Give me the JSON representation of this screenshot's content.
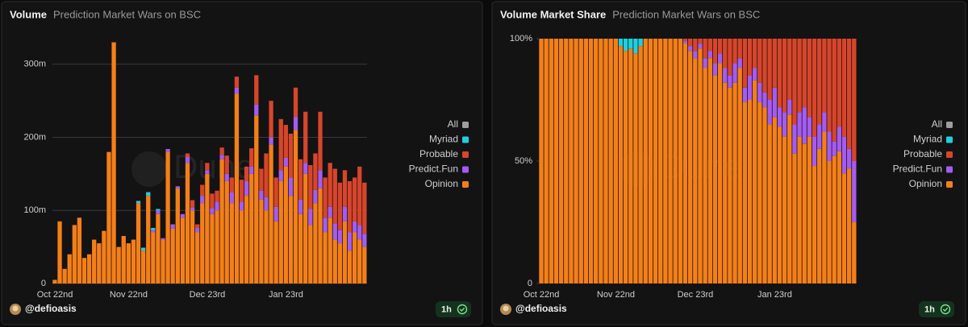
{
  "watermark": "Dune",
  "footer": {
    "author": "@defioasis",
    "badge": "1h"
  },
  "chart_data": [
    {
      "type": "stacked-bar",
      "title": "Volume",
      "subtitle": "Prediction Market Wars on BSC",
      "categories": [
        "Oct 22nd",
        null,
        null,
        null,
        null,
        null,
        null,
        null,
        null,
        null,
        null,
        null,
        null,
        null,
        null,
        "Nov 22nd",
        null,
        null,
        null,
        null,
        null,
        null,
        null,
        null,
        null,
        null,
        null,
        null,
        null,
        null,
        null,
        "Dec 23rd",
        null,
        null,
        null,
        null,
        null,
        null,
        null,
        null,
        null,
        null,
        null,
        null,
        null,
        null,
        null,
        "Jan 23rd",
        null,
        null,
        null,
        null,
        null,
        null,
        null,
        null,
        null,
        null,
        null,
        null,
        null,
        null,
        null,
        null
      ],
      "ylim": [
        0,
        335
      ],
      "yticks": [
        0,
        {
          "value": 100,
          "label": "100m"
        },
        {
          "value": 200,
          "label": "200m"
        },
        {
          "value": 300,
          "label": "300m"
        }
      ],
      "grid": true,
      "series": [
        {
          "name": "Opinion",
          "color": "#f57f17",
          "values": [
            5,
            85,
            20,
            40,
            80,
            90,
            35,
            40,
            60,
            55,
            72,
            180,
            330,
            50,
            65,
            55,
            60,
            110,
            45,
            120,
            70,
            95,
            60,
            180,
            75,
            130,
            90,
            165,
            100,
            70,
            110,
            150,
            95,
            100,
            170,
            140,
            110,
            260,
            100,
            120,
            150,
            230,
            115,
            100,
            190,
            85,
            140,
            160,
            120,
            210,
            95,
            150,
            80,
            110,
            130,
            70,
            90,
            60,
            55,
            85,
            45,
            70,
            60,
            50
          ]
        },
        {
          "name": "Predict.Fun",
          "color": "#a45cf0",
          "values": [
            0,
            0,
            0,
            0,
            0,
            0,
            0,
            0,
            0,
            0,
            0,
            0,
            0,
            0,
            0,
            0,
            0,
            0,
            0,
            0,
            3,
            5,
            2,
            4,
            6,
            3,
            5,
            8,
            4,
            6,
            10,
            5,
            8,
            12,
            6,
            10,
            15,
            8,
            12,
            20,
            10,
            15,
            12,
            18,
            10,
            20,
            15,
            12,
            25,
            18,
            20,
            15,
            22,
            18,
            25,
            20,
            15,
            22,
            18,
            20,
            25,
            15,
            20,
            18
          ]
        },
        {
          "name": "Probable",
          "color": "#d8452a",
          "values": [
            0,
            0,
            0,
            0,
            0,
            0,
            0,
            0,
            0,
            0,
            0,
            0,
            0,
            0,
            0,
            0,
            0,
            0,
            0,
            0,
            0,
            0,
            0,
            0,
            0,
            0,
            0,
            5,
            10,
            5,
            15,
            10,
            20,
            15,
            10,
            25,
            20,
            15,
            30,
            20,
            25,
            40,
            30,
            60,
            50,
            40,
            70,
            45,
            60,
            40,
            55,
            70,
            60,
            50,
            80,
            55,
            60,
            75,
            65,
            50,
            70,
            60,
            80,
            70
          ]
        },
        {
          "name": "Myriad",
          "color": "#1fcfe0",
          "values": [
            0,
            0,
            0,
            0,
            0,
            0,
            0,
            0,
            0,
            0,
            0,
            0,
            0,
            0,
            0,
            0,
            0,
            3,
            4,
            5,
            3,
            2,
            0,
            0,
            0,
            0,
            0,
            0,
            0,
            0,
            0,
            0,
            0,
            0,
            0,
            0,
            0,
            0,
            0,
            0,
            0,
            0,
            0,
            0,
            0,
            0,
            0,
            0,
            0,
            0,
            0,
            0,
            0,
            0,
            0,
            0,
            0,
            0,
            0,
            0,
            0,
            0,
            0,
            0
          ]
        },
        {
          "name": "All",
          "color": "#9e9e9e"
        }
      ]
    },
    {
      "type": "stacked-bar",
      "title": "Volume Market Share",
      "subtitle": "Prediction Market Wars on BSC",
      "categories": [
        "Oct 22nd",
        null,
        null,
        null,
        null,
        null,
        null,
        null,
        null,
        null,
        null,
        null,
        null,
        null,
        null,
        "Nov 22nd",
        null,
        null,
        null,
        null,
        null,
        null,
        null,
        null,
        null,
        null,
        null,
        null,
        null,
        null,
        null,
        "Dec 23rd",
        null,
        null,
        null,
        null,
        null,
        null,
        null,
        null,
        null,
        null,
        null,
        null,
        null,
        null,
        null,
        "Jan 23rd",
        null,
        null,
        null,
        null,
        null,
        null,
        null,
        null,
        null,
        null,
        null,
        null,
        null,
        null,
        null,
        null
      ],
      "ylim": [
        0,
        100
      ],
      "yticks": [
        0,
        {
          "value": 50,
          "label": "50%"
        },
        {
          "value": 100,
          "label": "100%"
        }
      ],
      "grid": false,
      "series": [
        {
          "name": "Opinion",
          "color": "#f57f17",
          "values": [
            100,
            100,
            100,
            100,
            100,
            100,
            100,
            100,
            100,
            100,
            100,
            100,
            100,
            100,
            100,
            100,
            97,
            95,
            96,
            94,
            97,
            100,
            100,
            100,
            100,
            100,
            100,
            100,
            100,
            98,
            95,
            92,
            96,
            88,
            92,
            85,
            90,
            82,
            80,
            82,
            88,
            74,
            75,
            83,
            74,
            72,
            65,
            68,
            64,
            60,
            69,
            53,
            60,
            57,
            60,
            48,
            55,
            62,
            50,
            52,
            54,
            45,
            47,
            25
          ]
        },
        {
          "name": "Predict.Fun",
          "color": "#a45cf0",
          "values": [
            0,
            0,
            0,
            0,
            0,
            0,
            0,
            0,
            0,
            0,
            0,
            0,
            0,
            0,
            0,
            0,
            0,
            0,
            0,
            0,
            0,
            0,
            0,
            0,
            0,
            0,
            0,
            0,
            0,
            1,
            2,
            3,
            2,
            4,
            3,
            5,
            4,
            6,
            5,
            8,
            4,
            6,
            10,
            5,
            8,
            6,
            10,
            12,
            8,
            10,
            6,
            12,
            10,
            15,
            8,
            12,
            10,
            8,
            12,
            6,
            10,
            15,
            8,
            25
          ]
        },
        {
          "name": "Probable",
          "color": "#d8452a",
          "values": [
            0,
            0,
            0,
            0,
            0,
            0,
            0,
            0,
            0,
            0,
            0,
            0,
            0,
            0,
            0,
            0,
            0,
            0,
            0,
            0,
            0,
            0,
            0,
            0,
            0,
            0,
            0,
            0,
            0,
            1,
            3,
            5,
            2,
            8,
            5,
            10,
            6,
            12,
            15,
            10,
            8,
            20,
            15,
            12,
            18,
            22,
            25,
            20,
            28,
            30,
            25,
            35,
            30,
            28,
            32,
            40,
            35,
            30,
            38,
            42,
            36,
            40,
            45,
            50
          ]
        },
        {
          "name": "Myriad",
          "color": "#1fcfe0",
          "values": [
            0,
            0,
            0,
            0,
            0,
            0,
            0,
            0,
            0,
            0,
            0,
            0,
            0,
            0,
            0,
            0,
            3,
            5,
            4,
            6,
            3,
            0,
            0,
            0,
            0,
            0,
            0,
            0,
            0,
            0,
            0,
            0,
            0,
            0,
            0,
            0,
            0,
            0,
            0,
            0,
            0,
            0,
            0,
            0,
            0,
            0,
            0,
            0,
            0,
            0,
            0,
            0,
            0,
            0,
            0,
            0,
            0,
            0,
            0,
            0,
            0,
            0,
            0,
            0
          ]
        },
        {
          "name": "All",
          "color": "#9e9e9e"
        }
      ]
    }
  ]
}
